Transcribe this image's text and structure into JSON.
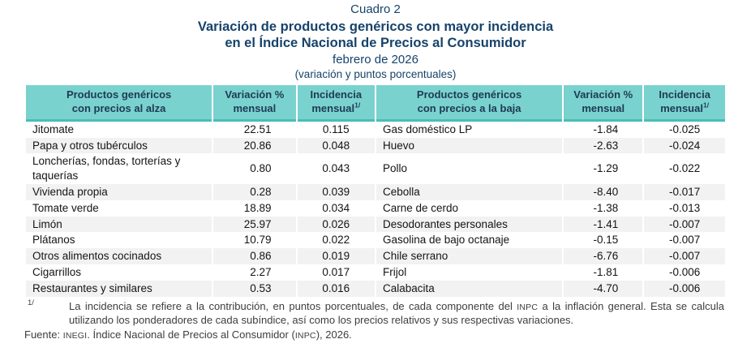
{
  "header": {
    "caption": "Cuadro 2",
    "title_line1": "Variación de productos genéricos con mayor incidencia",
    "title_line2": "en el Índice Nacional de Precios al Consumidor",
    "subtitle": "febrero de 2026",
    "units": "(variación y puntos porcentuales)"
  },
  "table": {
    "col_headers": [
      {
        "line1": "Productos genéricos",
        "line2": "con precios al alza",
        "sup": ""
      },
      {
        "line1": "Variación %",
        "line2": "mensual",
        "sup": ""
      },
      {
        "line1": "Incidencia",
        "line2": "mensual",
        "sup": "1/"
      },
      {
        "line1": "Productos genéricos",
        "line2": "con precios a la baja",
        "sup": ""
      },
      {
        "line1": "Variación %",
        "line2": "mensual",
        "sup": ""
      },
      {
        "line1": "Incidencia",
        "line2": "mensual",
        "sup": "1/"
      }
    ],
    "rows": [
      {
        "alza": "Jitomate",
        "alza_var": "22.51",
        "alza_inc": "0.115",
        "baja": "Gas doméstico LP",
        "baja_var": "-1.84",
        "baja_inc": "-0.025"
      },
      {
        "alza": "Papa y otros tubérculos",
        "alza_var": "20.86",
        "alza_inc": "0.048",
        "baja": "Huevo",
        "baja_var": "-2.63",
        "baja_inc": "-0.024"
      },
      {
        "alza": "Loncherías, fondas, torterías y taquerías",
        "alza_var": "0.80",
        "alza_inc": "0.043",
        "baja": "Pollo",
        "baja_var": "-1.29",
        "baja_inc": "-0.022"
      },
      {
        "alza": "Vivienda propia",
        "alza_var": "0.28",
        "alza_inc": "0.039",
        "baja": "Cebolla",
        "baja_var": "-8.40",
        "baja_inc": "-0.017"
      },
      {
        "alza": "Tomate verde",
        "alza_var": "18.89",
        "alza_inc": "0.034",
        "baja": "Carne de cerdo",
        "baja_var": "-1.38",
        "baja_inc": "-0.013"
      },
      {
        "alza": "Limón",
        "alza_var": "25.97",
        "alza_inc": "0.026",
        "baja": "Desodorantes personales",
        "baja_var": "-1.41",
        "baja_inc": "-0.007"
      },
      {
        "alza": "Plátanos",
        "alza_var": "10.79",
        "alza_inc": "0.022",
        "baja": "Gasolina de bajo octanaje",
        "baja_var": "-0.15",
        "baja_inc": "-0.007"
      },
      {
        "alza": "Otros alimentos cocinados",
        "alza_var": "0.86",
        "alza_inc": "0.019",
        "baja": "Chile serrano",
        "baja_var": "-6.76",
        "baja_inc": "-0.007"
      },
      {
        "alza": "Cigarrillos",
        "alza_var": "2.27",
        "alza_inc": "0.017",
        "baja": "Frijol",
        "baja_var": "-1.81",
        "baja_inc": "-0.006"
      },
      {
        "alza": "Restaurantes y similares",
        "alza_var": "0.53",
        "alza_inc": "0.016",
        "baja": "Calabacita",
        "baja_var": "-4.70",
        "baja_inc": "-0.006"
      }
    ]
  },
  "footnote": {
    "marker": "1/",
    "text": "La incidencia se refiere a la contribución, en puntos porcentuales, de cada componente del INPC a la inflación general. Esta se calcula utilizando los ponderadores de cada subíndice, así como los precios relativos y sus respectivas variaciones.",
    "source": "Fuente: INEGI. Índice Nacional de Precios al Consumidor (INPC), 2026."
  },
  "colors": {
    "title_navy": "#16436B",
    "header_teal": "#7AD2CF",
    "header_border_teal": "#49BDB9",
    "row_stripe": "#F2F2F2",
    "body_text": "#141414",
    "footnote_text": "#3D3D3D"
  }
}
